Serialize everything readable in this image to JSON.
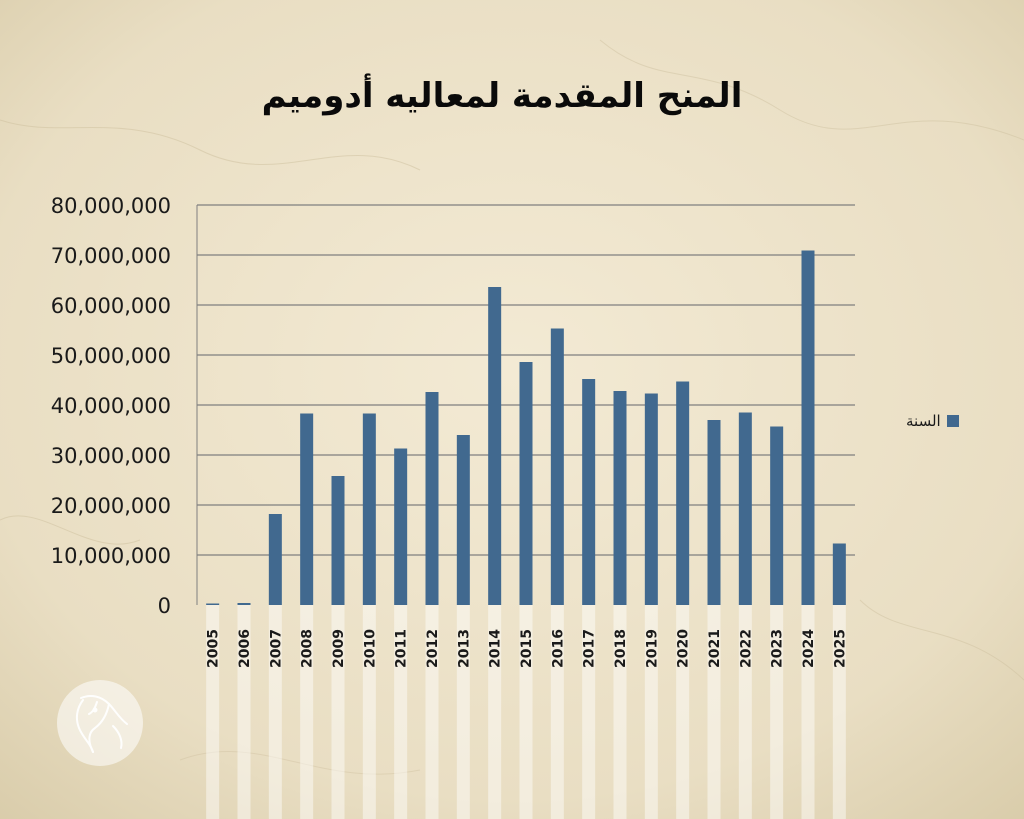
{
  "chart_data": {
    "type": "bar",
    "title": "المنح المقدمة لمعاليه أدوميم",
    "categories": [
      "2005",
      "2006",
      "2007",
      "2008",
      "2009",
      "2010",
      "2011",
      "2012",
      "2013",
      "2014",
      "2015",
      "2016",
      "2017",
      "2018",
      "2019",
      "2020",
      "2021",
      "2022",
      "2023",
      "2024",
      "2025"
    ],
    "series": [
      {
        "name": "السنة",
        "values": [
          300000,
          400000,
          18200000,
          38300000,
          25800000,
          38300000,
          31300000,
          42600000,
          34000000,
          63600000,
          48600000,
          55300000,
          45200000,
          42800000,
          42300000,
          44700000,
          37000000,
          38500000,
          35700000,
          70900000,
          12300000
        ]
      }
    ],
    "ylim": [
      0,
      80000000
    ],
    "yticks": [
      "0",
      "10,000,000",
      "20,000,000",
      "30,000,000",
      "40,000,000",
      "50,000,000",
      "60,000,000",
      "70,000,000",
      "80,000,000"
    ],
    "grid": true,
    "legend_position": "right",
    "colors": {
      "bar": "#41698f",
      "grid": "#7f7f7f",
      "text": "#1a1a1a",
      "background": "#efe6cf"
    }
  },
  "logo": {
    "icon": "horse-head-icon"
  }
}
